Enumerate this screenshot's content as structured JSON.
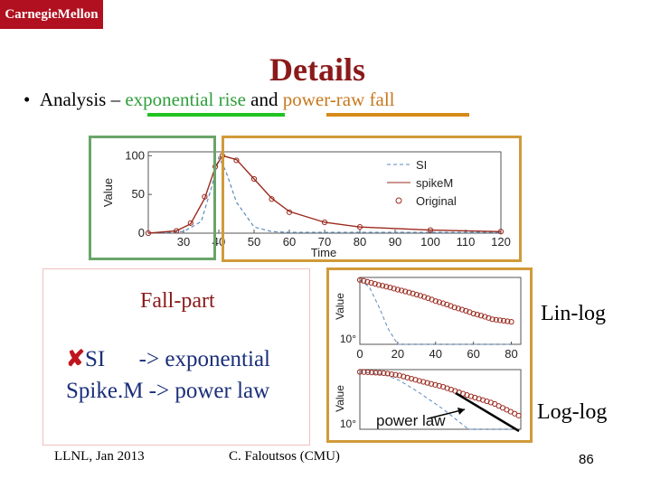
{
  "header": {
    "logo_text": "CarnegieMellon",
    "logo_color": "#b0101f"
  },
  "slide": {
    "title": "Details",
    "bullet_prefix": "Analysis –",
    "bullet_green": "exponential rise",
    "bullet_mid": "and",
    "bullet_orange": "power-raw fall"
  },
  "fall_part": {
    "title": "Fall-part",
    "line1_mark": "✘",
    "line1_text": "SI      -> exponential",
    "line2_text": "Spike.M -> power law"
  },
  "labels": {
    "lin_log": "Lin-log",
    "log_log": "Log-log"
  },
  "footer": {
    "left": "LLNL, Jan 2013",
    "center": "C. Faloutsos (CMU)",
    "page": "86"
  },
  "chart_data": [
    {
      "type": "line",
      "xlabel": "Time",
      "ylabel": "Value",
      "xticks": [
        "30",
        "40",
        "50",
        "60",
        "70",
        "80",
        "90",
        "100",
        "110",
        "120"
      ],
      "yticks": [
        "0",
        "50",
        "100"
      ],
      "legend": [
        "SI",
        "spikeM",
        "Original"
      ],
      "legend_position": "top-right",
      "series": [
        {
          "name": "SI",
          "color": "#5b8bbd",
          "x": [
            20,
            30,
            35,
            38,
            40,
            42,
            45,
            50,
            55,
            60,
            120
          ],
          "y": [
            0,
            2,
            15,
            60,
            98,
            80,
            40,
            8,
            2,
            1,
            1
          ]
        },
        {
          "name": "spikeM",
          "color": "#9b2a1e",
          "x": [
            20,
            28,
            32,
            36,
            39,
            41,
            45,
            50,
            55,
            60,
            70,
            80,
            100,
            120
          ],
          "y": [
            0,
            3,
            12,
            45,
            85,
            100,
            95,
            70,
            45,
            28,
            14,
            8,
            4,
            2
          ]
        },
        {
          "name": "Original",
          "color": "#9b2a1e",
          "x": [
            20,
            28,
            32,
            36,
            39,
            41,
            45,
            50,
            55,
            60,
            70,
            80,
            100,
            120
          ],
          "y": [
            0,
            3,
            13,
            47,
            86,
            100,
            94,
            70,
            44,
            27,
            14,
            8,
            4,
            2
          ]
        }
      ]
    },
    {
      "type": "line",
      "scale": "lin-log",
      "ylabel": "Value",
      "yticks": [
        "10°"
      ],
      "xticks": [
        "0",
        "20",
        "40",
        "60",
        "80"
      ],
      "series": [
        {
          "name": "SI",
          "color": "#5b8bbd",
          "x": [
            0,
            5,
            10,
            15,
            20,
            30,
            80
          ],
          "y": [
            100,
            60,
            15,
            3,
            1,
            1,
            1
          ]
        },
        {
          "name": "Original",
          "color": "#9b2a1e",
          "x": [
            0,
            10,
            20,
            30,
            40,
            50,
            60,
            70,
            80
          ],
          "y": [
            100,
            70,
            50,
            35,
            22,
            14,
            9,
            6,
            5
          ]
        }
      ]
    },
    {
      "type": "line",
      "scale": "log-log",
      "ylabel": "Value",
      "yticks": [
        "10°"
      ],
      "annotation": "power law",
      "series": [
        {
          "name": "SI",
          "color": "#5b8bbd",
          "x": [
            1,
            2,
            3,
            5,
            10,
            20,
            80
          ],
          "y": [
            100,
            80,
            50,
            20,
            5,
            1,
            1
          ]
        },
        {
          "name": "Original",
          "color": "#9b2a1e",
          "x": [
            1,
            2,
            3,
            5,
            10,
            20,
            40,
            80
          ],
          "y": [
            100,
            90,
            75,
            50,
            30,
            15,
            8,
            3
          ]
        }
      ]
    }
  ]
}
